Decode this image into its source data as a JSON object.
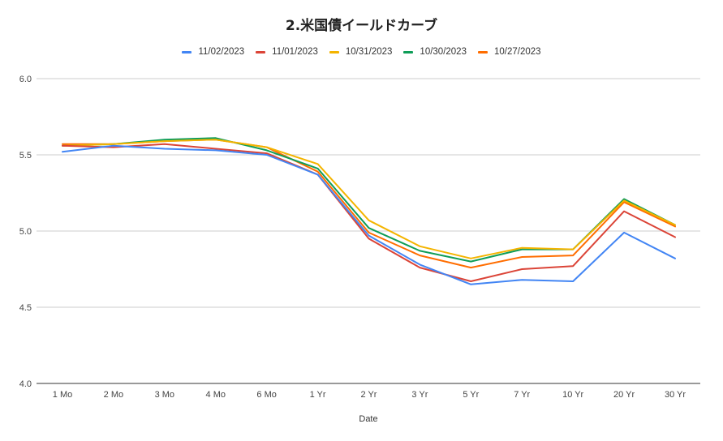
{
  "chart_data": {
    "type": "line",
    "title": "2.米国債イールドカーブ",
    "xlabel": "Date",
    "ylabel": "",
    "categories": [
      "1 Mo",
      "2 Mo",
      "3 Mo",
      "4 Mo",
      "6 Mo",
      "1 Yr",
      "2 Yr",
      "3 Yr",
      "5 Yr",
      "7 Yr",
      "10 Yr",
      "20 Yr",
      "30 Yr"
    ],
    "ylim": [
      4.0,
      6.0
    ],
    "yticks": [
      "4.0",
      "4.5",
      "5.0",
      "5.5",
      "6.0"
    ],
    "grid": true,
    "legend_position": "top-center",
    "series": [
      {
        "name": "11/02/2023",
        "color": "#4285f4",
        "values": [
          5.52,
          5.56,
          5.54,
          5.53,
          5.5,
          5.37,
          4.97,
          4.78,
          4.65,
          4.68,
          4.67,
          4.99,
          4.82
        ]
      },
      {
        "name": "11/01/2023",
        "color": "#db4437",
        "values": [
          5.56,
          5.55,
          5.57,
          5.54,
          5.51,
          5.37,
          4.95,
          4.76,
          4.67,
          4.75,
          4.77,
          5.13,
          4.96
        ]
      },
      {
        "name": "10/31/2023",
        "color": "#f4b400",
        "values": [
          5.56,
          5.57,
          5.59,
          5.6,
          5.55,
          5.44,
          5.07,
          4.9,
          4.82,
          4.89,
          4.88,
          5.2,
          5.04
        ]
      },
      {
        "name": "10/30/2023",
        "color": "#0f9d58",
        "values": [
          5.56,
          5.57,
          5.6,
          5.61,
          5.53,
          5.41,
          5.02,
          4.87,
          4.8,
          4.88,
          4.88,
          5.21,
          5.04
        ]
      },
      {
        "name": "10/27/2023",
        "color": "#ff6d00",
        "values": [
          5.57,
          5.57,
          5.59,
          5.6,
          5.55,
          5.39,
          4.99,
          4.84,
          4.76,
          4.83,
          4.84,
          5.19,
          5.03
        ]
      }
    ]
  }
}
